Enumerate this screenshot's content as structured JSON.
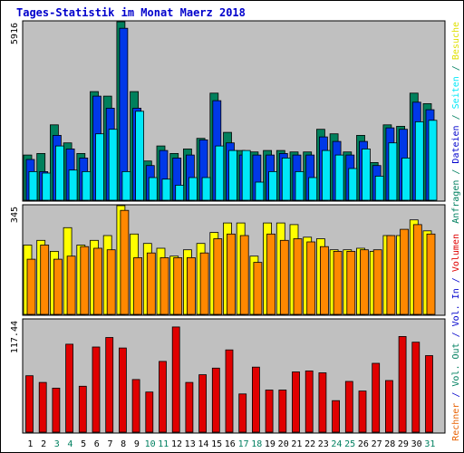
{
  "title": "Tages-Statistik im Monat Maerz 2018",
  "colors": {
    "panel_bg": "#c0c0c0",
    "anfragen": "#00805c",
    "dateien": "#0038e8",
    "seiten": "#00e8f8",
    "besuche": "#ffff00",
    "rechner": "#ff8800",
    "volumen": "#e00000",
    "label_blue": "#0000cc",
    "label_green": "#008060",
    "label_red": "#e00000",
    "label_orange": "#e86000",
    "label_yellow": "#e0e000"
  },
  "chart_data": [
    {
      "type": "bar",
      "name": "hits",
      "categories": [
        "1",
        "2",
        "3",
        "4",
        "5",
        "6",
        "7",
        "8",
        "9",
        "10",
        "11",
        "12",
        "13",
        "14",
        "15",
        "16",
        "17",
        "18",
        "19",
        "20",
        "21",
        "22",
        "23",
        "24",
        "25",
        "26",
        "27",
        "28",
        "29",
        "30",
        "31"
      ],
      "ymax_label": "5916",
      "ymax": 5916,
      "series": [
        {
          "name": "Anfragen",
          "color_key": "anfragen",
          "values": [
            1500,
            1550,
            2500,
            1900,
            1550,
            3600,
            3450,
            5916,
            3600,
            1300,
            1800,
            1550,
            1700,
            2050,
            3550,
            2250,
            1650,
            1600,
            1650,
            1650,
            1600,
            1600,
            2350,
            2200,
            1600,
            2150,
            1250,
            2500,
            2450,
            3550,
            3200
          ]
        },
        {
          "name": "Dateien",
          "color_key": "dateien",
          "values": [
            1350,
            950,
            2150,
            1700,
            1400,
            3450,
            3050,
            5700,
            3050,
            1150,
            1650,
            1400,
            1500,
            2000,
            3300,
            1900,
            1500,
            1500,
            1500,
            1550,
            1500,
            1500,
            2100,
            1950,
            1500,
            1950,
            1150,
            2400,
            2350,
            3250,
            3000
          ]
        },
        {
          "name": "Seiten",
          "color_key": "seiten",
          "values": [
            950,
            900,
            1800,
            1000,
            950,
            2200,
            2350,
            950,
            2950,
            750,
            700,
            500,
            750,
            750,
            1800,
            1650,
            1650,
            600,
            950,
            1400,
            950,
            750,
            1650,
            1500,
            1050,
            1700,
            800,
            1900,
            1400,
            2600,
            2650
          ]
        }
      ]
    },
    {
      "type": "bar",
      "name": "visits",
      "categories": [
        "1",
        "2",
        "3",
        "4",
        "5",
        "6",
        "7",
        "8",
        "9",
        "10",
        "11",
        "12",
        "13",
        "14",
        "15",
        "16",
        "17",
        "18",
        "19",
        "20",
        "21",
        "22",
        "23",
        "24",
        "25",
        "26",
        "27",
        "28",
        "29",
        "30",
        "31"
      ],
      "ymax_label": "345",
      "ymax": 345,
      "series": [
        {
          "name": "Besuche",
          "color_key": "besuche",
          "values": [
            220,
            235,
            200,
            275,
            220,
            235,
            250,
            345,
            255,
            225,
            210,
            185,
            205,
            225,
            260,
            290,
            290,
            185,
            290,
            290,
            285,
            245,
            240,
            205,
            205,
            210,
            200,
            250,
            250,
            300,
            265
          ]
        },
        {
          "name": "Rechner",
          "color_key": "rechner",
          "values": [
            175,
            220,
            175,
            185,
            215,
            210,
            205,
            330,
            180,
            195,
            180,
            180,
            180,
            195,
            240,
            255,
            250,
            165,
            255,
            235,
            240,
            230,
            215,
            200,
            200,
            205,
            205,
            250,
            270,
            285,
            255
          ]
        }
      ]
    },
    {
      "type": "bar",
      "name": "volume",
      "categories": [
        "1",
        "2",
        "3",
        "4",
        "5",
        "6",
        "7",
        "8",
        "9",
        "10",
        "11",
        "12",
        "13",
        "14",
        "15",
        "16",
        "17",
        "18",
        "19",
        "20",
        "21",
        "22",
        "23",
        "24",
        "25",
        "26",
        "27",
        "28",
        "29",
        "30",
        "31"
      ],
      "ymax_label": "117.44",
      "ymax": 117.44,
      "series": [
        {
          "name": "Volumen",
          "color_key": "volumen",
          "values": [
            59,
            52,
            46,
            92,
            48,
            89,
            99,
            88,
            55,
            42,
            74,
            110,
            52,
            60,
            67,
            86,
            40,
            68,
            44,
            44,
            63,
            64,
            62,
            33,
            53,
            43,
            72,
            54,
            100,
            94,
            80
          ]
        }
      ]
    }
  ],
  "x_labels": [
    "1",
    "2",
    "3",
    "4",
    "5",
    "6",
    "7",
    "8",
    "9",
    "10",
    "11",
    "12",
    "13",
    "14",
    "15",
    "16",
    "17",
    "18",
    "19",
    "20",
    "21",
    "22",
    "23",
    "24",
    "25",
    "26",
    "27",
    "28",
    "29",
    "30",
    "31"
  ],
  "weekend_days": [
    3,
    4,
    10,
    11,
    17,
    18,
    24,
    25,
    31
  ],
  "right_legend": {
    "hits": [
      {
        "text": "Anfragen",
        "color_key": "label_green"
      },
      {
        "text": " / ",
        "color_key": "label_green"
      },
      {
        "text": "Dateien",
        "color_key": "label_blue"
      },
      {
        "text": " / ",
        "color_key": "label_green"
      },
      {
        "text": "Seiten",
        "color_key": "seiten"
      },
      {
        "text": " / ",
        "color_key": "label_green"
      },
      {
        "text": "Besuche",
        "color_key": "label_yellow"
      }
    ],
    "visits": [
      {
        "text": "Rechner",
        "color_key": "label_orange"
      },
      {
        "text": " / ",
        "color_key": "label_blue"
      },
      {
        "text": "Vol. Out",
        "color_key": "label_green"
      },
      {
        "text": " / ",
        "color_key": "label_blue"
      },
      {
        "text": "Vol. In",
        "color_key": "label_blue"
      },
      {
        "text": " / ",
        "color_key": "label_blue"
      },
      {
        "text": "Volumen",
        "color_key": "label_red"
      }
    ]
  }
}
